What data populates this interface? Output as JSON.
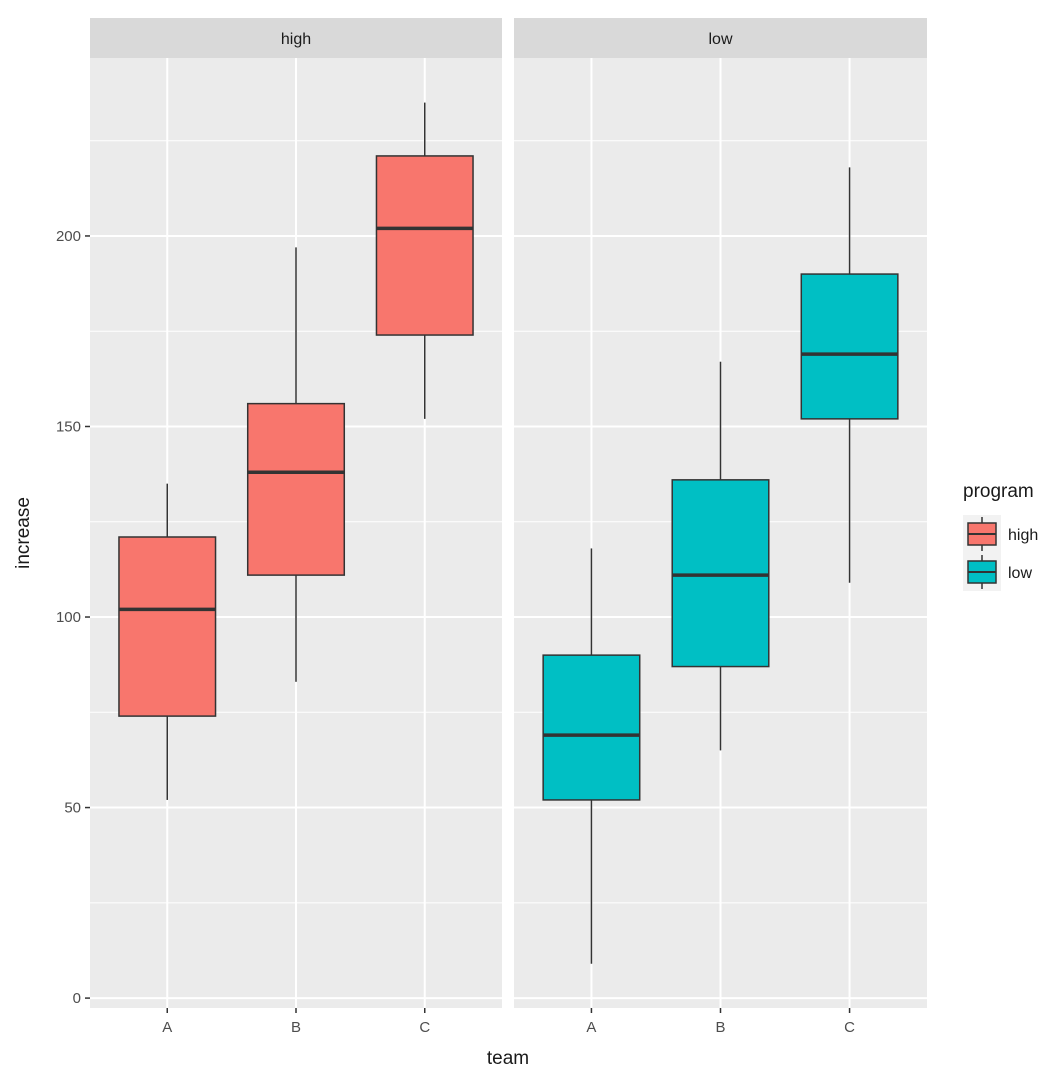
{
  "chart_data": {
    "type": "boxplot",
    "title": "",
    "xlabel": "team",
    "ylabel": "increase",
    "ylim": [
      -2.6,
      246.7
    ],
    "yticks": [
      0,
      50,
      100,
      150,
      200
    ],
    "grid": true,
    "categories": [
      "A",
      "B",
      "C"
    ],
    "facets": [
      {
        "label": "high",
        "color": "#F8766D",
        "boxes": [
          {
            "category": "A",
            "min": 52,
            "q1": 74,
            "median": 102,
            "q3": 121,
            "max": 135
          },
          {
            "category": "B",
            "min": 83,
            "q1": 111,
            "median": 138,
            "q3": 156,
            "max": 197
          },
          {
            "category": "C",
            "min": 152,
            "q1": 174,
            "median": 202,
            "q3": 221,
            "max": 235
          }
        ]
      },
      {
        "label": "low",
        "color": "#00BFC4",
        "boxes": [
          {
            "category": "A",
            "min": 9,
            "q1": 52,
            "median": 69,
            "q3": 90,
            "max": 118
          },
          {
            "category": "B",
            "min": 65,
            "q1": 87,
            "median": 111,
            "q3": 136,
            "max": 167
          },
          {
            "category": "C",
            "min": 109,
            "q1": 152,
            "median": 169,
            "q3": 190,
            "max": 218
          }
        ]
      }
    ],
    "legend": {
      "title": "program",
      "placement": "right",
      "entries": [
        {
          "label": "high",
          "color": "#F8766D"
        },
        {
          "label": "low",
          "color": "#00BFC4"
        }
      ]
    }
  }
}
